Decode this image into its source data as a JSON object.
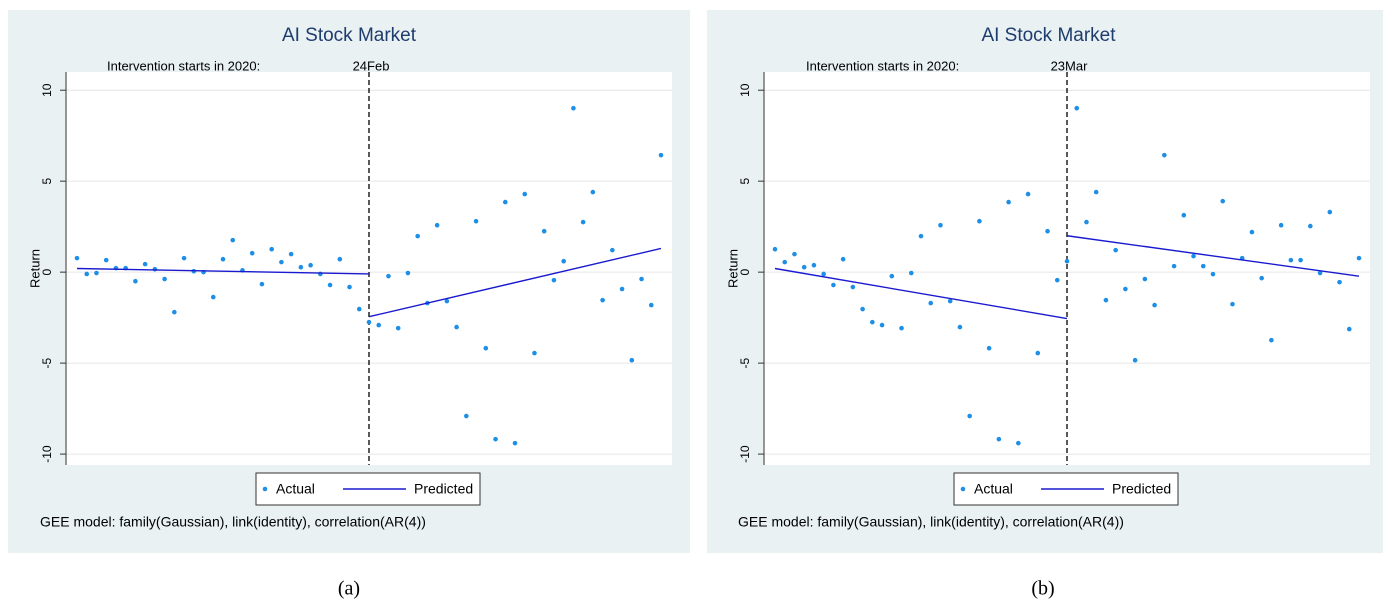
{
  "chart_data": [
    {
      "type": "scatter-line",
      "title": "AI Stock Market",
      "y_label": "Return",
      "caption": "(a)",
      "intervention": {
        "label": "Intervention starts in 2020:",
        "date": "24Feb",
        "index": 30
      },
      "note": "GEE model: family(Gaussian), link(identity), correlation(AR(4))",
      "ylim": [
        -10.6,
        11
      ],
      "yticks": [
        -10,
        -5,
        0,
        5,
        10
      ],
      "grid": true,
      "series": [
        {
          "name": "Actual",
          "color": "#1e8fe6",
          "values": [
            0.77,
            -0.1,
            -0.05,
            0.66,
            0.22,
            0.22,
            -0.5,
            0.44,
            0.16,
            -0.38,
            -2.2,
            0.77,
            0.05,
            0,
            -1.37,
            0.71,
            1.76,
            0.1,
            1.04,
            -0.66,
            1.26,
            0.55,
            0.99,
            0.27,
            0.38,
            -0.1,
            -0.71,
            0.71,
            -0.82,
            -2.03,
            -2.75,
            -2.91,
            -0.22,
            -3.08,
            -0.05,
            1.98,
            -1.7,
            2.58,
            -1.59,
            -3.02,
            -7.91,
            2.8,
            -4.18,
            -9.18,
            3.85,
            -9.4,
            4.29,
            -4.45,
            2.25,
            -0.44,
            0.6,
            9.01,
            2.75,
            4.4,
            -1.54,
            1.21,
            -0.93,
            -4.84,
            -0.38,
            -1.81,
            6.43
          ]
        },
        {
          "name": "Predicted",
          "color": "#1a1ad0",
          "segments": [
            {
              "x": [
                0,
                30
              ],
              "values": [
                0.2,
                -0.1
              ]
            },
            {
              "x": [
                30,
                60
              ],
              "values": [
                -2.45,
                1.3
              ]
            }
          ]
        }
      ]
    },
    {
      "type": "scatter-line",
      "title": "AI Stock Market",
      "y_label": "Return",
      "caption": "(b)",
      "intervention": {
        "label": "Intervention starts in 2020:",
        "date": "23Mar",
        "index": 30
      },
      "note": "GEE model: family(Gaussian), link(identity), correlation(AR(4))",
      "ylim": [
        -10.6,
        11
      ],
      "yticks": [
        -10,
        -5,
        0,
        5,
        10
      ],
      "grid": true,
      "series": [
        {
          "name": "Actual",
          "color": "#1e8fe6",
          "values": [
            1.26,
            0.55,
            0.99,
            0.27,
            0.38,
            -0.1,
            -0.71,
            0.71,
            -0.82,
            -2.03,
            -2.75,
            -2.91,
            -0.22,
            -3.08,
            -0.05,
            1.98,
            -1.7,
            2.58,
            -1.59,
            -3.02,
            -7.91,
            2.8,
            -4.18,
            -9.18,
            3.85,
            -9.4,
            4.29,
            -4.45,
            2.25,
            -0.44,
            0.6,
            9.01,
            2.75,
            4.4,
            -1.54,
            1.21,
            -0.93,
            -4.84,
            -0.38,
            -1.81,
            6.43,
            0.33,
            3.13,
            0.88,
            0.33,
            -0.11,
            3.9,
            -1.76,
            0.77,
            2.2,
            -0.33,
            -3.74,
            2.58,
            0.66,
            0.66,
            2.53,
            -0.05,
            3.3,
            -0.55,
            -3.13,
            0.77
          ]
        },
        {
          "name": "Predicted",
          "color": "#1a1ad0",
          "segments": [
            {
              "x": [
                0,
                30
              ],
              "values": [
                0.2,
                -2.55
              ]
            },
            {
              "x": [
                30,
                60
              ],
              "values": [
                2.0,
                -0.22
              ]
            }
          ]
        }
      ]
    }
  ]
}
